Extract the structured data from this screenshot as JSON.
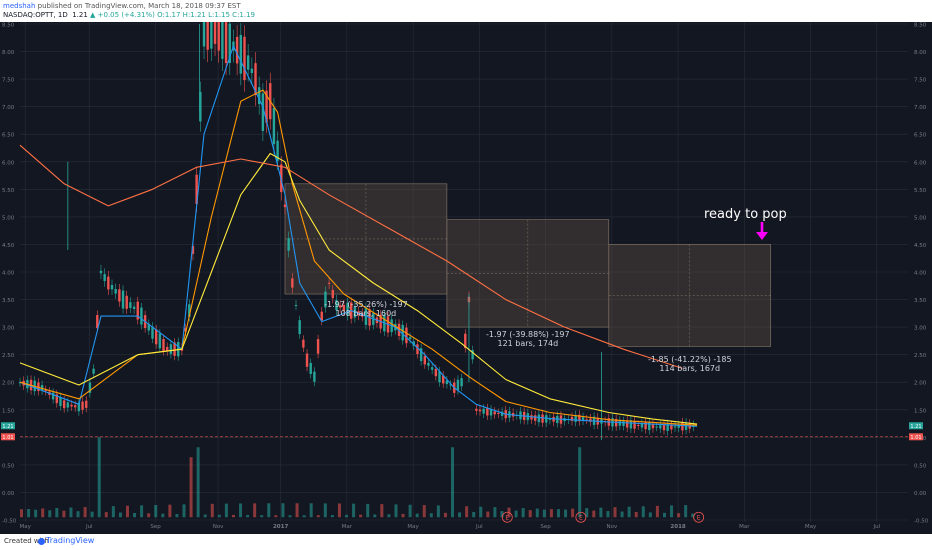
{
  "header": {
    "user": "medshah",
    "published": "published on TradingView.com, March 18, 2018 09:37 EST",
    "symbol": "NASDAQ:OPTT, 1D",
    "last": "1.21",
    "change": "+0.05 (+4.31%)",
    "ohlc": "O:1.17 H:1.21 L:1.15 C:1.19"
  },
  "footer": {
    "created": "Created with",
    "brand": "TradingView"
  },
  "colors": {
    "background": "#131722",
    "grid": "#2a2e39",
    "up": "#26a69a",
    "down": "#ef5350",
    "ma_fast": "#2196f3",
    "ma_mid": "#ff9800",
    "ma_slow": "#ffeb3b",
    "ma_long": "#ff7043",
    "box": "#6d5a4a",
    "arrow": "#ff00ff",
    "price_line": "#ef5350"
  },
  "annotations": [
    {
      "line1": "-1.97 (-35.26%) -197",
      "line2": "108 bars, 160d"
    },
    {
      "line1": "-1.97 (-39.88%) -197",
      "line2": "121 bars, 174d"
    },
    {
      "line1": "-1.85 (-41.22%) -185",
      "line2": "114 bars, 167d"
    }
  ],
  "ready_label": "ready to pop",
  "last_price_label": "1.21",
  "ref_price_label": "1.01",
  "earnings_marker": "E",
  "chart_data": {
    "type": "candlestick",
    "title": "NASDAQ:OPTT, 1D",
    "x_ticks": [
      "May",
      "Jul",
      "Sep",
      "Nov",
      "2017",
      "Mar",
      "May",
      "Jul",
      "Sep",
      "Nov",
      "2018",
      "Mar",
      "May",
      "Jul"
    ],
    "y_ticks": [
      "8.50",
      "8.00",
      "7.50",
      "7.00",
      "6.50",
      "6.00",
      "5.50",
      "5.00",
      "4.50",
      "4.00",
      "3.50",
      "3.00",
      "2.50",
      "2.00",
      "1.50",
      "1.00",
      "0.50",
      "0.00",
      "-0.50"
    ],
    "ylim": [
      -0.5,
      8.5
    ],
    "price_path": [
      [
        0,
        2.0
      ],
      [
        3,
        1.9
      ],
      [
        6,
        1.6
      ],
      [
        8,
        1.55
      ],
      [
        9,
        1.6
      ],
      [
        10,
        2.2
      ],
      [
        11,
        4.0
      ],
      [
        12,
        3.8
      ],
      [
        14,
        3.5
      ],
      [
        16,
        3.3
      ],
      [
        18,
        2.9
      ],
      [
        20,
        2.6
      ],
      [
        22,
        2.6
      ],
      [
        23,
        3.3
      ],
      [
        24,
        5.5
      ],
      [
        25,
        8.5
      ],
      [
        27,
        8.3
      ],
      [
        29,
        8.1
      ],
      [
        31,
        7.8
      ],
      [
        32,
        7.5
      ],
      [
        33,
        6.9
      ],
      [
        34,
        7.1
      ],
      [
        35,
        6.2
      ],
      [
        36,
        5.2
      ],
      [
        37,
        3.8
      ],
      [
        38,
        3.0
      ],
      [
        39,
        2.4
      ],
      [
        40,
        2.1
      ],
      [
        41,
        3.2
      ],
      [
        42,
        3.8
      ],
      [
        43,
        3.4
      ],
      [
        45,
        3.3
      ],
      [
        47,
        3.2
      ],
      [
        49,
        3.1
      ],
      [
        51,
        3.0
      ],
      [
        53,
        2.8
      ],
      [
        55,
        2.4
      ],
      [
        57,
        2.1
      ],
      [
        59,
        1.9
      ],
      [
        60,
        2.0
      ],
      [
        61,
        3.5
      ],
      [
        62,
        1.5
      ],
      [
        64,
        1.45
      ],
      [
        66,
        1.42
      ],
      [
        68,
        1.4
      ],
      [
        70,
        1.35
      ],
      [
        72,
        1.33
      ],
      [
        74,
        1.32
      ],
      [
        76,
        1.35
      ],
      [
        78,
        1.3
      ],
      [
        80,
        1.28
      ],
      [
        82,
        1.25
      ],
      [
        84,
        1.22
      ],
      [
        86,
        1.2
      ],
      [
        88,
        1.18
      ],
      [
        90,
        1.2
      ],
      [
        92,
        1.21
      ]
    ],
    "series": [
      {
        "name": "",
        "color": "#2196f3",
        "values": [
          [
            0,
            2.0
          ],
          [
            8,
            1.6
          ],
          [
            11,
            3.2
          ],
          [
            16,
            3.2
          ],
          [
            22,
            2.6
          ],
          [
            25,
            6.5
          ],
          [
            29,
            8.1
          ],
          [
            33,
            7.0
          ],
          [
            36,
            5.4
          ],
          [
            38,
            3.8
          ],
          [
            41,
            3.1
          ],
          [
            45,
            3.3
          ],
          [
            51,
            3.0
          ],
          [
            55,
            2.5
          ],
          [
            59,
            1.9
          ],
          [
            62,
            1.6
          ],
          [
            66,
            1.42
          ],
          [
            72,
            1.34
          ],
          [
            80,
            1.28
          ],
          [
            92,
            1.2
          ]
        ]
      },
      {
        "name": "",
        "color": "#ff9800",
        "values": [
          [
            0,
            2.0
          ],
          [
            8,
            1.7
          ],
          [
            16,
            2.5
          ],
          [
            22,
            2.6
          ],
          [
            26,
            5.0
          ],
          [
            30,
            7.1
          ],
          [
            33,
            7.3
          ],
          [
            35,
            6.9
          ],
          [
            37,
            5.6
          ],
          [
            40,
            4.2
          ],
          [
            44,
            3.6
          ],
          [
            50,
            3.1
          ],
          [
            56,
            2.6
          ],
          [
            61,
            2.1
          ],
          [
            66,
            1.65
          ],
          [
            72,
            1.45
          ],
          [
            80,
            1.32
          ],
          [
            92,
            1.22
          ]
        ]
      },
      {
        "name": "",
        "color": "#ffeb3b",
        "values": [
          [
            0,
            2.35
          ],
          [
            8,
            1.95
          ],
          [
            16,
            2.5
          ],
          [
            22,
            2.6
          ],
          [
            26,
            4.0
          ],
          [
            30,
            5.4
          ],
          [
            34,
            6.15
          ],
          [
            36,
            6.0
          ],
          [
            38,
            5.3
          ],
          [
            42,
            4.4
          ],
          [
            48,
            3.8
          ],
          [
            54,
            3.3
          ],
          [
            60,
            2.7
          ],
          [
            66,
            2.05
          ],
          [
            72,
            1.7
          ],
          [
            80,
            1.45
          ],
          [
            86,
            1.33
          ],
          [
            92,
            1.24
          ]
        ]
      },
      {
        "name": "",
        "color": "#ff7043",
        "values": [
          [
            0,
            6.3
          ],
          [
            6,
            5.6
          ],
          [
            12,
            5.2
          ],
          [
            18,
            5.5
          ],
          [
            24,
            5.9
          ],
          [
            30,
            6.05
          ],
          [
            36,
            5.9
          ],
          [
            42,
            5.4
          ],
          [
            50,
            4.8
          ],
          [
            58,
            4.2
          ],
          [
            66,
            3.5
          ],
          [
            74,
            3.0
          ],
          [
            82,
            2.6
          ],
          [
            90,
            2.25
          ]
        ]
      }
    ],
    "boxes": [
      {
        "x": [
          36,
          58
        ],
        "y": [
          3.6,
          5.6
        ]
      },
      {
        "x": [
          58,
          80
        ],
        "y": [
          3.0,
          4.95
        ]
      },
      {
        "x": [
          80,
          102
        ],
        "y": [
          2.65,
          4.5
        ]
      }
    ],
    "earnings_x": [
      73,
      83,
      99
    ],
    "grid": true
  }
}
